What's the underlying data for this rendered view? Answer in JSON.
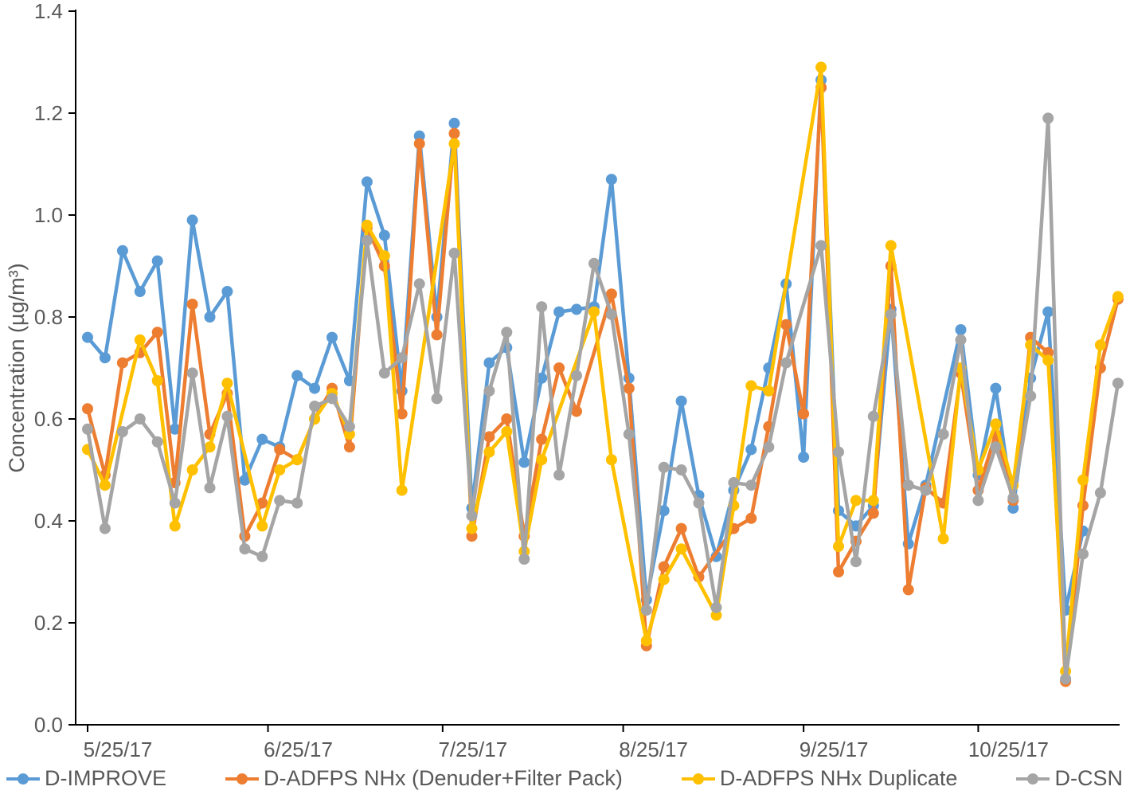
{
  "chart_data": {
    "type": "line",
    "title": "",
    "xlabel": "",
    "ylabel": "Concentration (µg/m³)",
    "ylim": [
      0.0,
      1.4
    ],
    "grid": false,
    "legend_position": "bottom",
    "y_ticks": [
      "0.0",
      "0.2",
      "0.4",
      "0.6",
      "0.8",
      "1.0",
      "1.2",
      "1.4"
    ],
    "x_ticks": [
      {
        "label": "5/25/17",
        "i": 0
      },
      {
        "label": "6/25/17",
        "i": 10.33
      },
      {
        "label": "7/25/17",
        "i": 20.33
      },
      {
        "label": "8/25/17",
        "i": 30.67
      },
      {
        "label": "9/25/17",
        "i": 41.0
      },
      {
        "label": "10/25/17",
        "i": 51.0
      }
    ],
    "x": [
      "5/25/17",
      "5/28/17",
      "5/31/17",
      "6/3/17",
      "6/6/17",
      "6/9/17",
      "6/12/17",
      "6/15/17",
      "6/18/17",
      "6/21/17",
      "6/24/17",
      "6/27/17",
      "6/30/17",
      "7/3/17",
      "7/6/17",
      "7/9/17",
      "7/12/17",
      "7/15/17",
      "7/18/17",
      "7/21/17",
      "7/24/17",
      "7/27/17",
      "7/30/17",
      "8/2/17",
      "8/5/17",
      "8/8/17",
      "8/11/17",
      "8/14/17",
      "8/17/17",
      "8/20/17",
      "8/23/17",
      "8/26/17",
      "8/29/17",
      "9/1/17",
      "9/4/17",
      "9/7/17",
      "9/10/17",
      "9/13/17",
      "9/16/17",
      "9/19/17",
      "9/22/17",
      "9/25/17",
      "9/28/17",
      "10/1/17",
      "10/4/17",
      "10/7/17",
      "10/10/17",
      "10/13/17",
      "10/16/17",
      "10/19/17",
      "10/22/17",
      "10/25/17",
      "10/28/17",
      "10/31/17",
      "11/3/17",
      "11/6/17",
      "11/9/17",
      "11/12/17",
      "11/15/17",
      "11/18/17"
    ],
    "series": [
      {
        "name": "D-IMPROVE",
        "color": "#5B9BD5",
        "values": [
          0.76,
          0.72,
          0.93,
          0.85,
          0.91,
          0.58,
          0.99,
          0.8,
          0.85,
          0.48,
          0.56,
          0.545,
          0.685,
          0.66,
          0.76,
          0.675,
          1.065,
          0.96,
          0.655,
          1.155,
          0.8,
          1.18,
          0.425,
          0.71,
          0.74,
          0.515,
          0.68,
          0.81,
          0.815,
          0.82,
          1.07,
          0.68,
          0.245,
          0.42,
          0.635,
          0.45,
          0.33,
          0.46,
          0.54,
          0.7,
          0.865,
          0.525,
          1.265,
          0.42,
          0.39,
          0.43,
          0.815,
          0.355,
          0.47,
          null,
          0.775,
          0.49,
          0.66,
          0.425,
          0.68,
          0.81,
          0.225,
          0.38,
          null,
          null
        ]
      },
      {
        "name": "D-ADFPS NHx (Denuder+Filter Pack)",
        "color": "#ED7D31",
        "values": [
          0.62,
          0.49,
          0.71,
          0.73,
          0.77,
          0.475,
          0.825,
          0.57,
          0.65,
          0.37,
          0.435,
          0.54,
          0.52,
          0.6,
          0.66,
          0.545,
          0.975,
          0.9,
          0.61,
          1.14,
          0.765,
          1.16,
          0.37,
          0.565,
          0.6,
          0.37,
          0.56,
          0.7,
          0.615,
          null,
          0.845,
          0.66,
          0.155,
          0.31,
          0.385,
          0.29,
          null,
          0.385,
          0.405,
          0.585,
          0.785,
          0.61,
          1.25,
          0.3,
          0.36,
          0.415,
          0.9,
          0.265,
          0.465,
          0.435,
          0.69,
          0.46,
          0.57,
          0.44,
          0.76,
          0.73,
          0.085,
          0.43,
          0.7,
          0.835
        ]
      },
      {
        "name": "D-ADFPS NHx Duplicate",
        "color": "#FFC000",
        "values": [
          0.54,
          0.47,
          null,
          0.755,
          0.675,
          0.39,
          0.5,
          0.545,
          0.67,
          null,
          0.39,
          0.5,
          0.52,
          0.6,
          0.65,
          0.57,
          0.98,
          0.92,
          0.46,
          null,
          null,
          1.14,
          0.385,
          0.535,
          0.575,
          0.34,
          0.52,
          null,
          null,
          0.81,
          0.52,
          null,
          0.165,
          0.285,
          0.345,
          null,
          0.215,
          0.43,
          0.665,
          0.655,
          null,
          null,
          1.29,
          0.35,
          0.44,
          0.44,
          0.94,
          null,
          null,
          0.365,
          0.7,
          0.5,
          0.59,
          0.47,
          0.745,
          0.715,
          0.105,
          0.48,
          0.745,
          0.84
        ]
      },
      {
        "name": "D-CSN",
        "color": "#A5A5A5",
        "values": [
          0.58,
          0.385,
          0.575,
          0.6,
          0.555,
          0.435,
          0.69,
          0.465,
          0.605,
          0.345,
          0.33,
          0.44,
          0.435,
          0.625,
          0.64,
          0.585,
          0.95,
          0.69,
          0.72,
          0.865,
          0.64,
          0.925,
          0.41,
          0.655,
          0.77,
          0.325,
          0.82,
          0.49,
          0.685,
          0.905,
          0.805,
          0.57,
          0.225,
          0.505,
          0.5,
          0.435,
          0.23,
          0.475,
          0.47,
          0.545,
          0.71,
          null,
          0.94,
          0.535,
          0.32,
          0.605,
          0.805,
          0.47,
          0.46,
          0.57,
          0.755,
          0.44,
          0.545,
          0.445,
          0.645,
          1.19,
          0.09,
          0.335,
          0.455,
          0.67
        ]
      }
    ]
  }
}
